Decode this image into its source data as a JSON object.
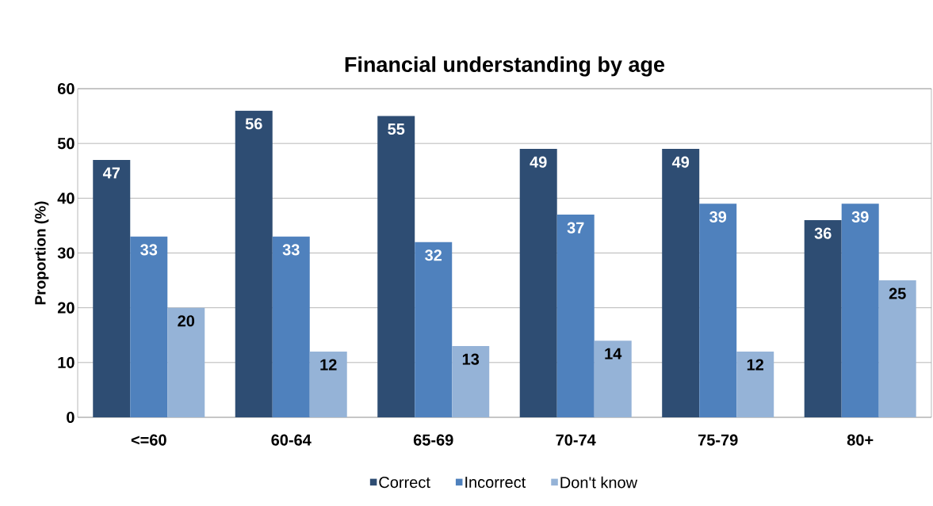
{
  "chart_data": {
    "type": "bar",
    "title": "Financial understanding  by age",
    "ylabel": "Proportion (%)",
    "categories": [
      "<=60",
      "60-64",
      "65-69",
      "70-74",
      "75-79",
      "80+"
    ],
    "series": [
      {
        "name": "Correct",
        "color": "#2e4d73",
        "values": [
          47,
          56,
          55,
          49,
          49,
          36
        ]
      },
      {
        "name": "Incorrect",
        "color": "#4f81bd",
        "values": [
          33,
          33,
          32,
          37,
          39,
          39
        ]
      },
      {
        "name": "Don't know",
        "color": "#95b3d7",
        "values": [
          20,
          12,
          13,
          14,
          12,
          25
        ]
      }
    ],
    "ylim": [
      0,
      60
    ],
    "yticks": [
      0,
      10,
      20,
      30,
      40,
      50,
      60
    ],
    "grid": "y",
    "legend": "bottom",
    "data_labels": true
  }
}
